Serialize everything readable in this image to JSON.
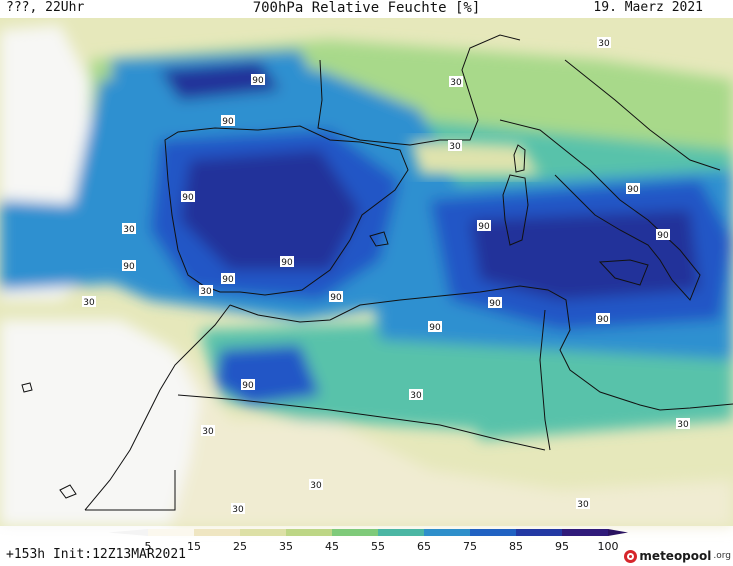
{
  "header": {
    "left": "???, 22Uhr",
    "title": "700hPa Relative Feuchte [%]",
    "date": "19. Maerz 2021"
  },
  "run_info": "+153h Init:12Z13MAR2021",
  "brand": {
    "name": "meteopool",
    "suffix": ".org"
  },
  "contour_values": {
    "high": "90",
    "low": "30"
  },
  "colorbar": {
    "ticks": [
      "5",
      "15",
      "25",
      "35",
      "45",
      "55",
      "65",
      "75",
      "85",
      "95",
      "100"
    ],
    "colors": [
      "#fbf8ee",
      "#efe6c2",
      "#dde0a6",
      "#bdd685",
      "#7fca79",
      "#4bb6a3",
      "#2e8fca",
      "#2162c2",
      "#2339a3",
      "#301b7a"
    ]
  },
  "colors": {
    "very_dry": "#f7f7f5",
    "dry": "#f0ecd2",
    "low_moist": "#dfe3ad",
    "mid_moist": "#a8d98a",
    "moist": "#58c2aa",
    "wet": "#2f90d0",
    "very_wet": "#2357c6",
    "saturated": "#22339a",
    "peak": "#3a1a70"
  }
}
